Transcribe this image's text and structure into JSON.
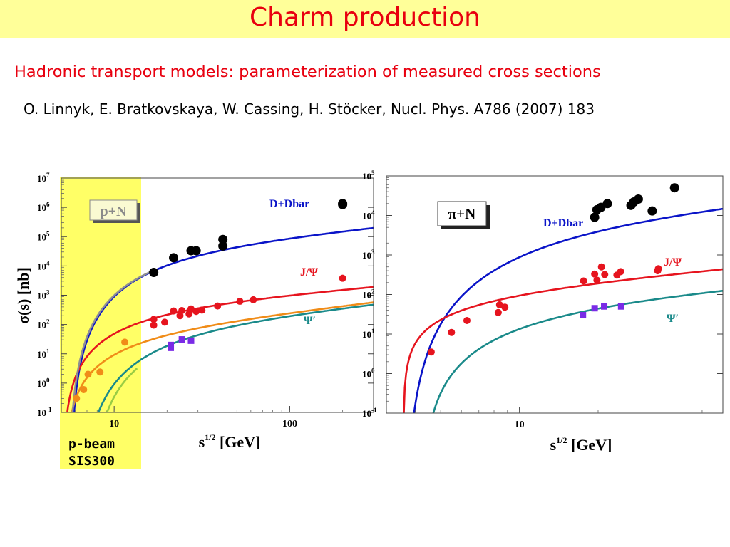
{
  "slide": {
    "title": "Charm production",
    "subtitle": "Hadronic transport models: parameterization of measured cross sections",
    "citation": "O. Linnyk, E. Bratkovskaya, W. Cassing, H. Stöcker, Nucl. Phys. A786 (2007) 183",
    "beam_label_line1": "p-beam",
    "beam_label_line2": "SIS300",
    "highlight_color": "#ffff66",
    "title_bar_color": "#ffff99",
    "title_color": "#e8000f"
  },
  "chart_data": [
    {
      "type": "scatter",
      "panel_label": "p+N",
      "xlabel": "s^1/2 [GeV]",
      "ylabel": "σ(s) [nb]",
      "x_scale": "log",
      "y_scale": "log",
      "xlim": [
        5,
        300
      ],
      "ylim": [
        0.1,
        10000000
      ],
      "x_ticks": [
        {
          "value": 10,
          "label": "10"
        },
        {
          "value": 100,
          "label": "100"
        }
      ],
      "y_ticks": [
        {
          "value": 0.1,
          "base": "10",
          "exp": "-1"
        },
        {
          "value": 1,
          "base": "10",
          "exp": "0"
        },
        {
          "value": 10,
          "base": "10",
          "exp": "1"
        },
        {
          "value": 100,
          "base": "10",
          "exp": "2"
        },
        {
          "value": 1000,
          "base": "10",
          "exp": "3"
        },
        {
          "value": 10000,
          "base": "10",
          "exp": "4"
        },
        {
          "value": 100000,
          "base": "10",
          "exp": "5"
        },
        {
          "value": 1000000,
          "base": "10",
          "exp": "6"
        },
        {
          "value": 10000000,
          "base": "10",
          "exp": "7"
        }
      ],
      "highlight_xrange": [
        5,
        14.5
      ],
      "series": [
        {
          "name": "D+Dbar",
          "color": "#0a14c8",
          "marker": "circle",
          "curve": {
            "x0": 5.6,
            "A": 26000,
            "a": 4.1,
            "g": 0.62
          },
          "points": [
            [
              16.8,
              6000
            ],
            [
              21.8,
              19000
            ],
            [
              27.4,
              33000
            ],
            [
              29.3,
              33000
            ],
            [
              41.6,
              80000
            ],
            [
              41.6,
              48000
            ],
            [
              200,
              1350000
            ],
            [
              200,
              1250000
            ]
          ]
        },
        {
          "name": "J/Ψ",
          "color": "#e6141e",
          "marker": "circle",
          "curve": {
            "x0": 5.1,
            "A": 330,
            "a": 2.7,
            "g": 0.53
          },
          "points": [
            [
              16.8,
              150
            ],
            [
              16.8,
              95
            ],
            [
              19.4,
              120
            ],
            [
              21.8,
              290
            ],
            [
              23.7,
              200
            ],
            [
              24.3,
              300
            ],
            [
              26.7,
              230
            ],
            [
              27.4,
              340
            ],
            [
              29.3,
              280
            ],
            [
              31.6,
              310
            ],
            [
              38.8,
              430
            ],
            [
              52,
              620
            ],
            [
              62,
              700
            ],
            [
              200,
              3800
            ]
          ]
        },
        {
          "name": "Ψ′",
          "color": "#1a8a8a",
          "marker": "square",
          "curve": {
            "x0": 6.4,
            "A": 55,
            "a": 4.0,
            "g": 0.66
          },
          "points": [
            [
              21,
              16
            ],
            [
              21,
              20
            ],
            [
              24.3,
              31
            ],
            [
              27.4,
              28
            ]
          ]
        },
        {
          "name": "",
          "color": "#f08c18",
          "marker": "circle",
          "curve": {
            "x0": 5.25,
            "A": 55,
            "a": 2.4,
            "g": 0.7
          },
          "points": [
            [
              6.1,
              0.3
            ],
            [
              6.7,
              0.6
            ],
            [
              7.1,
              2.0
            ],
            [
              8.3,
              2.4
            ],
            [
              11.5,
              25
            ]
          ]
        },
        {
          "name": "",
          "color": "#909090",
          "marker": "none",
          "curve": {
            "x0": 5.5,
            "A": 26000,
            "a": 4.1,
            "g": 0.62
          },
          "x_max": 16.5,
          "points": []
        },
        {
          "name": "",
          "color": "#99cc44",
          "marker": "none",
          "curve": {
            "x0": 7.2,
            "A": 55,
            "a": 4.0,
            "g": 0.66
          },
          "x_max": 13.5,
          "points": []
        }
      ]
    },
    {
      "type": "scatter",
      "panel_label": "π+N",
      "xlabel": "s^1/2 [GeV]",
      "ylabel": "",
      "x_scale": "log",
      "y_scale": "log",
      "xlim": [
        3.1,
        60
      ],
      "ylim": [
        0.1,
        100000
      ],
      "x_ticks": [
        {
          "value": 10,
          "label": "10"
        }
      ],
      "y_ticks": [
        {
          "value": 0.1,
          "base": "10",
          "exp": "-1"
        },
        {
          "value": 1,
          "base": "10",
          "exp": "0"
        },
        {
          "value": 10,
          "base": "10",
          "exp": "1"
        },
        {
          "value": 100,
          "base": "10",
          "exp": "2"
        },
        {
          "value": 1000,
          "base": "10",
          "exp": "3"
        },
        {
          "value": 10000,
          "base": "10",
          "exp": "4"
        },
        {
          "value": 100000,
          "base": "10",
          "exp": "5"
        }
      ],
      "series": [
        {
          "name": "D+Dbar",
          "color": "#0a14c8",
          "marker": "circle",
          "curve": {
            "x0": 3.65,
            "A": 5400,
            "a": 4.0,
            "g": 0.7
          },
          "points": [
            [
              19.4,
              9000
            ],
            [
              19.8,
              14000
            ],
            [
              20.5,
              16000
            ],
            [
              21.7,
              20000
            ],
            [
              26.7,
              18000
            ],
            [
              27.4,
              22000
            ],
            [
              28.5,
              26000
            ],
            [
              32.2,
              13000
            ],
            [
              39.2,
              50000
            ]
          ]
        },
        {
          "name": "J/Ψ",
          "color": "#e6141e",
          "marker": "circle",
          "curve": {
            "x0": 3.6,
            "A": 160,
            "a": 1.2,
            "g": 0.6
          },
          "points": [
            [
              4.6,
              3.5
            ],
            [
              5.5,
              11
            ],
            [
              6.3,
              22
            ],
            [
              8.3,
              35
            ],
            [
              8.4,
              55
            ],
            [
              8.8,
              48
            ],
            [
              17.6,
              220
            ],
            [
              19.4,
              330
            ],
            [
              19.8,
              230
            ],
            [
              20.6,
              500
            ],
            [
              21.2,
              320
            ],
            [
              23.6,
              310
            ],
            [
              24.4,
              380
            ],
            [
              33.8,
              400
            ],
            [
              34,
              450
            ]
          ]
        },
        {
          "name": "Ψ′",
          "color": "#1a8a8a",
          "marker": "square",
          "curve": {
            "x0": 4.2,
            "A": 55,
            "a": 2.6,
            "g": 0.56
          },
          "points": [
            [
              17.5,
              30
            ],
            [
              19.4,
              45
            ],
            [
              21.1,
              50
            ],
            [
              24.5,
              50
            ]
          ]
        }
      ]
    }
  ]
}
